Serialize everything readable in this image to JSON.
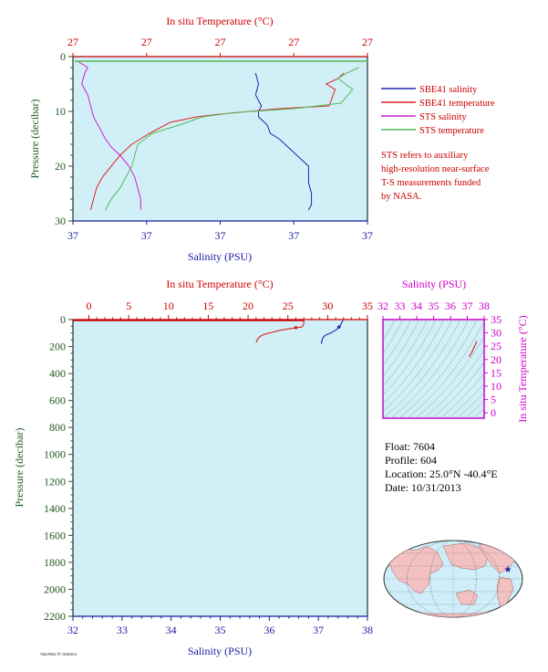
{
  "chart_data": [
    {
      "type": "line",
      "panel": "near-surface-profile",
      "top_axis": {
        "label": "In situ Temperature (°C)",
        "tick_labels": [
          "27",
          "27",
          "27",
          "27",
          "27"
        ],
        "color": "#cc0000"
      },
      "bottom_axis": {
        "label": "Salinity (PSU)",
        "tick_labels": [
          "37",
          "37",
          "37",
          "37",
          "37"
        ],
        "color": "#1a1aa0"
      },
      "y_axis": {
        "label": "Pressure (decibar)",
        "ticks": [
          0,
          10,
          20,
          30
        ],
        "range": [
          0,
          30
        ],
        "inverted": true,
        "color": "#1f5a1f"
      },
      "background": "#d1eff7",
      "legend_position": "right",
      "series": [
        {
          "name": "SBE41 salinity",
          "color": "#2222aa",
          "x_frac": [
            0.62,
            0.63,
            0.62,
            0.64,
            0.63,
            0.63,
            0.66,
            0.67,
            0.7,
            0.72,
            0.74,
            0.76,
            0.78,
            0.8,
            0.8,
            0.8,
            0.81,
            0.81,
            0.8
          ],
          "y": [
            3.0,
            5.0,
            7.0,
            9.0,
            10.0,
            11.0,
            12.5,
            14.0,
            15.0,
            16.0,
            17.0,
            18.0,
            19.0,
            20.0,
            21.0,
            23.0,
            25.0,
            27.0,
            28.0
          ]
        },
        {
          "name": "SBE41 temperature",
          "color": "#dd2222",
          "x_frac": [
            0.92,
            0.9,
            0.86,
            0.89,
            0.87,
            0.7,
            0.5,
            0.42,
            0.33,
            0.26,
            0.2,
            0.16,
            0.13,
            0.1,
            0.08,
            0.07,
            0.06
          ],
          "y": [
            3.0,
            4.0,
            5.0,
            6.0,
            9.0,
            9.5,
            10.5,
            11.0,
            12.0,
            14.0,
            16.0,
            18.0,
            20.0,
            22.0,
            24.0,
            26.0,
            28.0
          ]
        },
        {
          "name": "STS salinity",
          "color": "#cc22cc",
          "x_frac": [
            0.02,
            0.05,
            0.04,
            0.03,
            0.05,
            0.06,
            0.07,
            0.09,
            0.11,
            0.13,
            0.16,
            0.19,
            0.21,
            0.22,
            0.23,
            0.23,
            0.23
          ],
          "y": [
            1.0,
            2.0,
            3.0,
            5.0,
            7.0,
            9.0,
            11.0,
            13.0,
            15.0,
            16.5,
            18.0,
            20.0,
            22.0,
            24.0,
            26.0,
            27.0,
            28.0
          ]
        },
        {
          "name": "STS temperature",
          "color": "#55bb55",
          "x_frac": [
            0.97,
            0.93,
            0.9,
            0.95,
            0.91,
            0.75,
            0.55,
            0.44,
            0.36,
            0.27,
            0.22,
            0.21,
            0.2,
            0.18,
            0.16,
            0.13,
            0.11
          ],
          "y": [
            2.0,
            3.0,
            4.0,
            6.0,
            8.5,
            9.5,
            10.2,
            11.0,
            12.5,
            14.0,
            16.0,
            18.0,
            20.0,
            22.0,
            24.0,
            26.0,
            28.0
          ]
        }
      ],
      "note": "STS refers to auxiliary high-resolution near-surface T-S measurements funded by NASA."
    },
    {
      "type": "line",
      "panel": "full-profile",
      "top_axis": {
        "label": "In situ Temperature (°C)",
        "ticks": [
          0,
          5,
          10,
          15,
          20,
          25,
          30,
          35
        ],
        "range": [
          -2,
          35
        ],
        "color": "#cc0000"
      },
      "bottom_axis": {
        "label": "Salinity (PSU)",
        "ticks": [
          32,
          33,
          34,
          35,
          36,
          37,
          38
        ],
        "range": [
          32,
          38
        ],
        "color": "#1a1aa0"
      },
      "y_axis": {
        "label": "Pressure (decibar)",
        "ticks": [
          0,
          200,
          400,
          600,
          800,
          1000,
          1200,
          1400,
          1600,
          1800,
          2000,
          2200
        ],
        "range": [
          0,
          2200
        ],
        "inverted": true,
        "color": "#1f5a1f"
      },
      "background": "#d1eff7",
      "series": [
        {
          "color": "#dd2222",
          "temperature_c": [
            27.0,
            27.0,
            27.0,
            26.8,
            26.0,
            25.0,
            24.0,
            23.0,
            22.0,
            21.5,
            21.2,
            21.0
          ],
          "pressure": [
            5,
            10,
            30,
            55,
            60,
            70,
            80,
            95,
            110,
            125,
            145,
            170
          ]
        },
        {
          "color": "#2222aa",
          "salinity_psu": [
            37.5,
            37.48,
            37.45,
            37.42,
            37.4,
            37.35,
            37.25,
            37.15,
            37.1,
            37.08,
            37.07,
            37.06
          ],
          "pressure": [
            5,
            20,
            40,
            55,
            65,
            80,
            100,
            115,
            130,
            145,
            160,
            180
          ]
        }
      ]
    },
    {
      "type": "scatter",
      "panel": "ts-diagram",
      "top_axis": {
        "label": "Salinity (PSU)",
        "ticks": [
          32,
          33,
          34,
          35,
          36,
          37,
          38
        ],
        "range": [
          32,
          38
        ],
        "color": "#cc00cc"
      },
      "right_axis": {
        "label": "In situ Temperature (°C)",
        "ticks": [
          0,
          5,
          10,
          15,
          20,
          25,
          30,
          35
        ],
        "range": [
          -2,
          35
        ],
        "color": "#cc00cc"
      },
      "series": [
        {
          "color": "#dd2222",
          "salinity_psu": [
            37.1,
            37.25,
            37.4,
            37.5,
            37.55
          ],
          "temperature_c": [
            21.0,
            22.5,
            24.5,
            26.0,
            27.0
          ]
        }
      ]
    }
  ],
  "legend": {
    "entries": [
      {
        "label": "SBE41 salinity",
        "color": "#2222aa"
      },
      {
        "label": "SBE41 temperature",
        "color": "#dd2222"
      },
      {
        "label": "STS salinity",
        "color": "#cc22cc"
      },
      {
        "label": "STS temperature",
        "color": "#55bb55"
      }
    ]
  },
  "note_lines": [
    "STS refers to auxiliary",
    "high-resolution near-surface",
    "T-S measurements funded",
    "by NASA."
  ],
  "float_info": {
    "float": "Float:  7604",
    "profile": "Profile:  604",
    "location": "Location:  25.0°N  -40.4°E",
    "date": "Date:  10/31/2013"
  },
  "map": {
    "marker_label": "float position",
    "ocean_color": "#cfeefa",
    "land_color": "#f2c2c2",
    "marker_color": "#1a1aa0"
  },
  "footer_text": "7604 P604 TT 10302014"
}
